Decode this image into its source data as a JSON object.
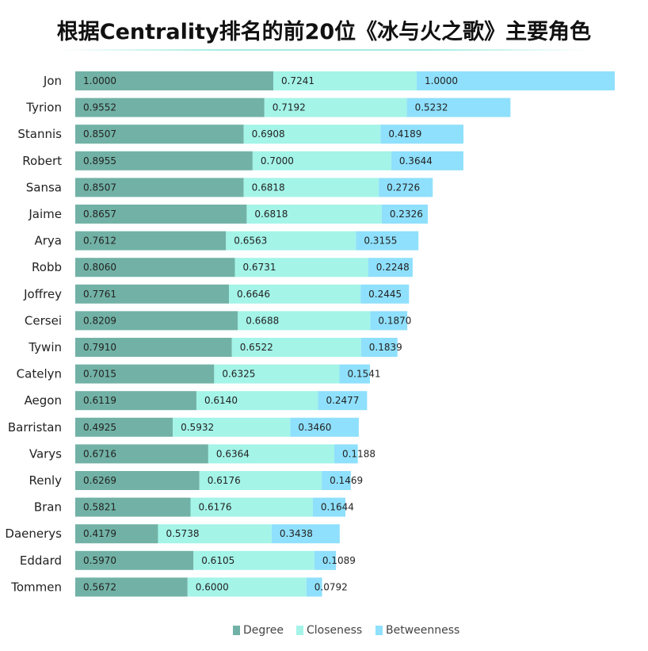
{
  "chart_data": {
    "type": "bar",
    "orientation": "horizontal",
    "stacked": true,
    "title": "根据Centrality排名的前20位《冰与火之歌》主要角色",
    "categories": [
      "Jon",
      "Tyrion",
      "Stannis",
      "Robert",
      "Sansa",
      "Jaime",
      "Arya",
      "Robb",
      "Joffrey",
      "Cersei",
      "Tywin",
      "Catelyn",
      "Aegon",
      "Barristan",
      "Varys",
      "Renly",
      "Bran",
      "Daenerys",
      "Eddard",
      "Tommen"
    ],
    "series": [
      {
        "name": "Degree",
        "color": "#72b2a6",
        "values": [
          1.0,
          0.9552,
          0.8507,
          0.8955,
          0.8507,
          0.8657,
          0.7612,
          0.806,
          0.7761,
          0.8209,
          0.791,
          0.7015,
          0.6119,
          0.4925,
          0.6716,
          0.6269,
          0.5821,
          0.4179,
          0.597,
          0.5672
        ]
      },
      {
        "name": "Closeness",
        "color": "#a4f4e8",
        "values": [
          0.7241,
          0.7192,
          0.6908,
          0.7,
          0.6818,
          0.6818,
          0.6563,
          0.6731,
          0.6646,
          0.6688,
          0.6522,
          0.6325,
          0.614,
          0.5932,
          0.6364,
          0.6176,
          0.6176,
          0.5738,
          0.6105,
          0.6
        ]
      },
      {
        "name": "Betweenness",
        "color": "#8fe0fc",
        "values": [
          1.0,
          0.5232,
          0.4189,
          0.3644,
          0.2726,
          0.2326,
          0.3155,
          0.2248,
          0.2445,
          0.187,
          0.1839,
          0.1541,
          0.2477,
          0.346,
          0.1188,
          0.1469,
          0.1644,
          0.3438,
          0.1089,
          0.0792
        ]
      }
    ],
    "value_labels": [
      [
        "1.0000",
        "0.9552",
        "0.8507",
        "0.8955",
        "0.8507",
        "0.8657",
        "0.7612",
        "0.8060",
        "0.7761",
        "0.8209",
        "0.7910",
        "0.7015",
        "0.6119",
        "0.4925",
        "0.6716",
        "0.6269",
        "0.5821",
        "0.4179",
        "0.5970",
        "0.5672"
      ],
      [
        "0.7241",
        "0.7192",
        "0.6908",
        "0.7000",
        "0.6818",
        "0.6818",
        "0.6563",
        "0.6731",
        "0.6646",
        "0.6688",
        "0.6522",
        "0.6325",
        "0.6140",
        "0.5932",
        "0.6364",
        "0.6176",
        "0.6176",
        "0.5738",
        "0.6105",
        "0.6000"
      ],
      [
        "1.0000",
        "0.5232",
        "0.4189",
        "0.3644",
        "0.2726",
        "0.2326",
        "0.3155",
        "0.2248",
        "0.2445",
        "0.1870",
        "0.1839",
        "0.1541",
        "0.2477",
        "0.3460",
        "0.1188",
        "0.1469",
        "0.1644",
        "0.3438",
        "0.1089",
        "0.0792"
      ]
    ],
    "xlabel": "",
    "ylabel": "",
    "xlim": [
      0,
      2.7241
    ],
    "grid": false,
    "legend": "bottom-center"
  }
}
